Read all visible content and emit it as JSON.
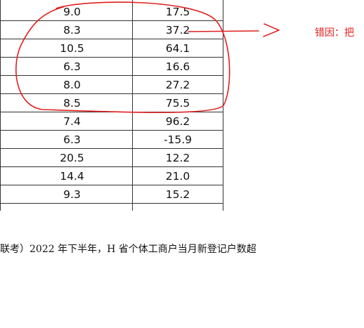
{
  "table": {
    "rows": [
      {
        "col_a": "9.0",
        "col_b": "17.5"
      },
      {
        "col_a": "8.3",
        "col_b": "37.2"
      },
      {
        "col_a": "10.5",
        "col_b": "64.1"
      },
      {
        "col_a": "6.3",
        "col_b": "16.6"
      },
      {
        "col_a": "8.0",
        "col_b": "27.2"
      },
      {
        "col_a": "8.5",
        "col_b": "75.5"
      },
      {
        "col_a": "7.4",
        "col_b": "96.2"
      },
      {
        "col_a": "6.3",
        "col_b": "-15.9"
      },
      {
        "col_a": "20.5",
        "col_b": "12.2"
      },
      {
        "col_a": "14.4",
        "col_b": "21.0"
      },
      {
        "col_a": "9.3",
        "col_b": "15.2"
      }
    ]
  },
  "annotation": {
    "note": "错因：把",
    "ink_color": "#e02020"
  },
  "question": {
    "text": "联考）2022 年下半年，H 省个体工商户当月新登记户数超"
  }
}
